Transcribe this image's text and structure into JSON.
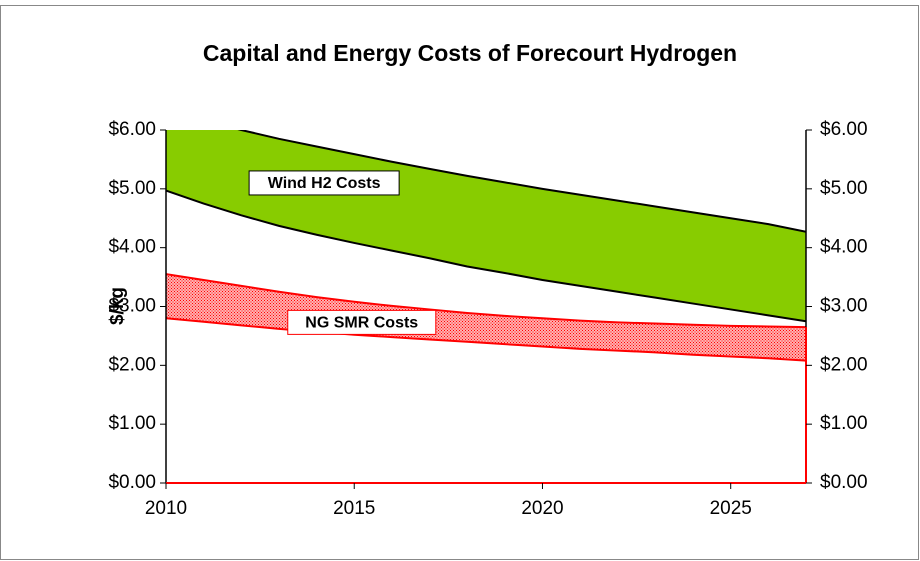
{
  "chart_data": {
    "type": "area",
    "title": "Capital and Energy Costs of Forecourt Hydrogen",
    "y_label": "$/kg",
    "x": [
      2010,
      2011,
      2012,
      2013,
      2014,
      2015,
      2016,
      2017,
      2018,
      2019,
      2020,
      2021,
      2022,
      2023,
      2024,
      2025,
      2026,
      2027
    ],
    "xlim": [
      2010,
      2027
    ],
    "xticks": [
      2010,
      2015,
      2020,
      2025
    ],
    "ylim": [
      0,
      6
    ],
    "yticks": [
      {
        "value": 0,
        "label": "$0.00"
      },
      {
        "value": 1,
        "label": "$1.00"
      },
      {
        "value": 2,
        "label": "$2.00"
      },
      {
        "value": 3,
        "label": "$3.00"
      },
      {
        "value": 4,
        "label": "$4.00"
      },
      {
        "value": 5,
        "label": "$5.00"
      },
      {
        "value": 6,
        "label": "$6.00"
      }
    ],
    "y2lim": [
      0,
      6
    ],
    "y2ticks": [
      {
        "value": 0,
        "label": "$0.00"
      },
      {
        "value": 1,
        "label": "$1.00"
      },
      {
        "value": 2,
        "label": "$2.00"
      },
      {
        "value": 3,
        "label": "$3.00"
      },
      {
        "value": 4,
        "label": "$4.00"
      },
      {
        "value": 5,
        "label": "$5.00"
      },
      {
        "value": 6,
        "label": "$6.00"
      }
    ],
    "series": [
      {
        "name": "Wind H2 Costs",
        "color": "#88cc00",
        "low": [
          4.97,
          4.75,
          4.55,
          4.37,
          4.22,
          4.08,
          3.95,
          3.82,
          3.68,
          3.57,
          3.45,
          3.35,
          3.25,
          3.15,
          3.05,
          2.95,
          2.85,
          2.75
        ],
        "high": [
          6.35,
          6.17,
          6.0,
          5.85,
          5.72,
          5.59,
          5.46,
          5.34,
          5.22,
          5.11,
          5.0,
          4.9,
          4.8,
          4.7,
          4.6,
          4.5,
          4.4,
          4.27
        ]
      },
      {
        "name": "NG SMR Costs",
        "color": "#ff0000",
        "low": [
          2.8,
          2.74,
          2.68,
          2.62,
          2.57,
          2.52,
          2.48,
          2.44,
          2.4,
          2.36,
          2.32,
          2.28,
          2.25,
          2.22,
          2.18,
          2.15,
          2.12,
          2.08
        ],
        "high": [
          3.55,
          3.45,
          3.35,
          3.25,
          3.16,
          3.08,
          3.01,
          2.95,
          2.89,
          2.84,
          2.8,
          2.76,
          2.73,
          2.71,
          2.69,
          2.67,
          2.66,
          2.65
        ]
      }
    ]
  }
}
